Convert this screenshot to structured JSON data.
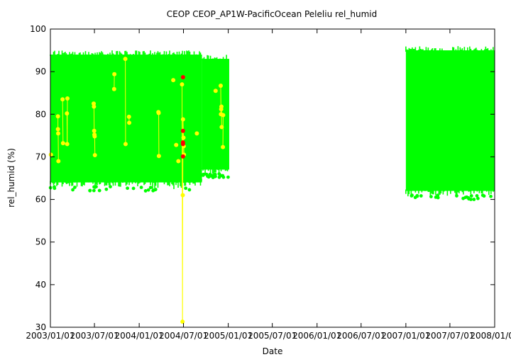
{
  "chart_data": {
    "type": "scatter",
    "title": "CEOP CEOP_AP1W-PacificOcean Peleliu  rel_humid",
    "xlabel": "Date",
    "ylabel": "rel_humid (%)",
    "ylim": [
      30,
      100
    ],
    "xlim": [
      "2003-01-01",
      "2008-01-01"
    ],
    "y_ticks": [
      "30",
      "40",
      "50",
      "60",
      "70",
      "80",
      "90",
      "100"
    ],
    "x_ticks": [
      "2003/01/01",
      "2003/07/01",
      "2004/01/01",
      "2004/07/01",
      "2005/01/01",
      "2005/07/01",
      "2006/01/01",
      "2006/07/01",
      "2007/01/01",
      "2007/07/01",
      "2008/01/01"
    ],
    "grid": false,
    "colors": {
      "good": "#00ff00",
      "questionable": "#ffff00",
      "bad": "#ff0000",
      "axis": "#000000"
    },
    "series": [
      {
        "quality": "good",
        "segments": [
          {
            "start": "2003-01-01",
            "end": "2004-09-15",
            "low": 63,
            "high": 95
          },
          {
            "start": "2004-09-15",
            "end": "2005-01-05",
            "low": 66,
            "high": 94
          },
          {
            "start": "2007-01-01",
            "end": "2008-01-01",
            "low": 61,
            "high": 96
          }
        ]
      },
      {
        "quality": "questionable",
        "points": [
          [
            "2003-01-03",
            70.5
          ],
          [
            "2003-02-01",
            79.5
          ],
          [
            "2003-02-01",
            76.5
          ],
          [
            "2003-02-02",
            75.5
          ],
          [
            "2003-02-03",
            69.0
          ],
          [
            "2003-02-20",
            83.5
          ],
          [
            "2003-02-22",
            73.2
          ],
          [
            "2003-03-10",
            80.2
          ],
          [
            "2003-03-11",
            73.0
          ],
          [
            "2003-03-12",
            83.7
          ],
          [
            "2003-06-28",
            82.5
          ],
          [
            "2003-06-29",
            81.8
          ],
          [
            "2003-06-30",
            76.1
          ],
          [
            "2003-07-01",
            75.2
          ],
          [
            "2003-07-02",
            74.8
          ],
          [
            "2003-07-03",
            70.4
          ],
          [
            "2003-09-20",
            85.9
          ],
          [
            "2003-09-21",
            89.4
          ],
          [
            "2003-11-05",
            93.0
          ],
          [
            "2003-11-06",
            73.0
          ],
          [
            "2003-11-20",
            79.4
          ],
          [
            "2003-11-21",
            78.0
          ],
          [
            "2004-03-20",
            80.5
          ],
          [
            "2004-03-21",
            80.3
          ],
          [
            "2004-03-22",
            70.2
          ],
          [
            "2004-05-20",
            88.0
          ],
          [
            "2004-06-01",
            72.8
          ],
          [
            "2004-06-10",
            69.0
          ],
          [
            "2004-06-25",
            87.0
          ],
          [
            "2004-06-28",
            61.0
          ],
          [
            "2004-06-27",
            31.3
          ],
          [
            "2004-06-29",
            78.8
          ],
          [
            "2004-07-01",
            74.5
          ],
          [
            "2004-07-02",
            72.5
          ],
          [
            "2004-07-03",
            70.5
          ],
          [
            "2004-08-25",
            75.5
          ],
          [
            "2004-11-10",
            85.5
          ],
          [
            "2004-12-01",
            86.7
          ],
          [
            "2004-12-02",
            80.0
          ],
          [
            "2004-12-03",
            81.2
          ],
          [
            "2004-12-04",
            81.8
          ],
          [
            "2004-12-05",
            77.0
          ],
          [
            "2004-12-10",
            72.3
          ],
          [
            "2004-12-11",
            79.8
          ]
        ]
      },
      {
        "quality": "bad",
        "points": [
          [
            "2004-06-29",
            88.7
          ],
          [
            "2004-06-29",
            76.1
          ],
          [
            "2004-06-29",
            73.4
          ],
          [
            "2004-06-29",
            73.0
          ],
          [
            "2004-06-29",
            70.1
          ]
        ]
      }
    ]
  }
}
